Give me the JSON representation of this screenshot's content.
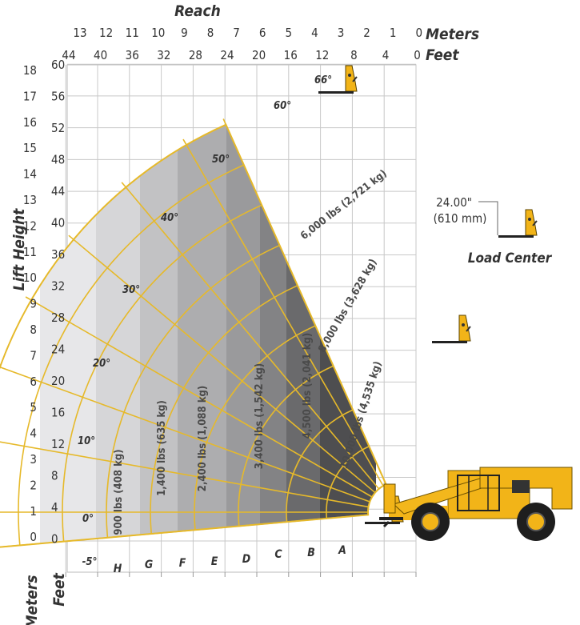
{
  "chart_data": {
    "type": "load-chart",
    "reach": {
      "title": "Reach",
      "meters_label": "Meters",
      "feet_label": "Feet",
      "meters_ticks": [
        "13",
        "12",
        "11",
        "10",
        "9",
        "8",
        "7",
        "6",
        "5",
        "4",
        "3",
        "2",
        "1",
        "0"
      ],
      "feet_ticks": [
        "44",
        "40",
        "36",
        "32",
        "28",
        "24",
        "20",
        "16",
        "12",
        "8",
        "4",
        "0"
      ]
    },
    "lift_height": {
      "title": "Lift Height",
      "meters_ticks": [
        "18",
        "17",
        "16",
        "15",
        "14",
        "13",
        "12",
        "11",
        "10",
        "9",
        "8",
        "7",
        "6",
        "5",
        "4",
        "3",
        "2",
        "1",
        "0"
      ],
      "feet_ticks": [
        "60",
        "56",
        "52",
        "48",
        "44",
        "40",
        "36",
        "32",
        "28",
        "24",
        "20",
        "16",
        "12",
        "8",
        "4",
        "0"
      ],
      "bottom_meters": "Meters",
      "bottom_feet": "Feet"
    },
    "boom_angles": [
      "66°",
      "60°",
      "50°",
      "40°",
      "30°",
      "20°",
      "10°",
      "0°",
      "-5°"
    ],
    "extension_zones": [
      "A",
      "B",
      "C",
      "D",
      "E",
      "F",
      "G",
      "H"
    ],
    "capacities": [
      {
        "label": "6,000 lbs (2,721 kg)"
      },
      {
        "label": "8,000 lbs (3,628 kg)"
      },
      {
        "label": "10,000 lbs (4,535 kg)"
      },
      {
        "label": "4,500 lbs (2,041 kg)"
      },
      {
        "label": "3,400 lbs (1,542 kg)"
      },
      {
        "label": "2,400 lbs (1,088 kg)"
      },
      {
        "label": "1,400 lbs (635 kg)"
      },
      {
        "label": "900 lbs (408 kg)"
      }
    ],
    "load_center": {
      "inches": "24.00\"",
      "mm": "(610 mm)",
      "label": "Load Center"
    },
    "colors": {
      "grid_line": "#e4b82c",
      "arc_line": "#e6b92a",
      "machine": "#f2b418",
      "zone_shades": [
        "#4e4e50",
        "#6a6a6c",
        "#838385",
        "#9a9a9c",
        "#adadaf",
        "#c2c2c4",
        "#d6d6d8",
        "#e7e7e9"
      ]
    }
  }
}
